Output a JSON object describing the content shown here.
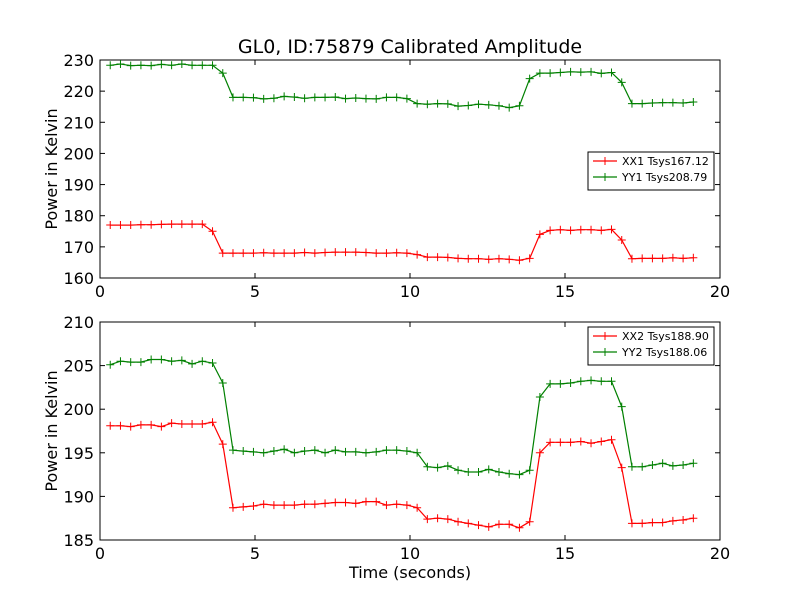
{
  "title": "GL0, ID:75879 Calibrated Amplitude",
  "chart_data": [
    {
      "type": "line",
      "title": "GL0, ID:75879 Calibrated Amplitude",
      "xlabel": "",
      "ylabel": "Power in Kelvin",
      "xlim": [
        0,
        20
      ],
      "ylim": [
        160,
        230
      ],
      "xticks": [
        0,
        5,
        10,
        15,
        20
      ],
      "yticks": [
        160,
        170,
        180,
        190,
        200,
        210,
        220,
        230
      ],
      "grid": false,
      "legend_position": "center-right",
      "x": [
        0.33,
        0.66,
        0.99,
        1.32,
        1.65,
        1.98,
        2.31,
        2.64,
        2.97,
        3.3,
        3.63,
        3.96,
        4.29,
        4.62,
        4.95,
        5.28,
        5.61,
        5.94,
        6.27,
        6.6,
        6.93,
        7.26,
        7.59,
        7.92,
        8.25,
        8.58,
        8.91,
        9.24,
        9.57,
        9.9,
        10.23,
        10.56,
        10.89,
        11.22,
        11.55,
        11.88,
        12.21,
        12.54,
        12.87,
        13.2,
        13.53,
        13.86,
        14.19,
        14.52,
        14.85,
        15.18,
        15.51,
        15.84,
        16.17,
        16.5,
        16.83,
        17.16,
        17.49,
        17.82,
        18.15,
        18.48,
        18.81,
        19.14
      ],
      "series": [
        {
          "name": "XX1 Tsys167.12",
          "color": "#ff0000",
          "values": [
            177.0,
            177.0,
            177.0,
            177.1,
            177.1,
            177.2,
            177.3,
            177.3,
            177.3,
            177.3,
            175.0,
            168.0,
            168.0,
            168.0,
            168.0,
            168.1,
            168.0,
            168.0,
            168.0,
            168.2,
            168.0,
            168.2,
            168.3,
            168.3,
            168.3,
            168.2,
            168.0,
            168.0,
            168.1,
            168.0,
            167.5,
            166.7,
            166.7,
            166.6,
            166.3,
            166.2,
            166.2,
            166.0,
            166.2,
            166.0,
            165.7,
            166.3,
            174.0,
            175.3,
            175.5,
            175.3,
            175.5,
            175.5,
            175.3,
            175.6,
            172.2,
            166.2,
            166.3,
            166.3,
            166.3,
            166.5,
            166.3,
            166.5
          ]
        },
        {
          "name": "YY1 Tsys208.79",
          "color": "#008000",
          "values": [
            228.3,
            228.7,
            228.2,
            228.3,
            228.2,
            228.6,
            228.3,
            228.7,
            228.3,
            228.3,
            228.3,
            225.8,
            218.0,
            218.0,
            217.9,
            217.5,
            217.7,
            218.3,
            218.1,
            217.7,
            218.0,
            218.0,
            218.1,
            217.6,
            217.8,
            217.6,
            217.5,
            218.0,
            218.0,
            217.6,
            216.0,
            215.8,
            216.0,
            215.9,
            215.2,
            215.4,
            215.8,
            215.6,
            215.3,
            214.7,
            215.3,
            224.0,
            225.8,
            225.8,
            226.0,
            226.2,
            226.1,
            226.2,
            225.7,
            226.0,
            222.8,
            216.0,
            216.0,
            216.2,
            216.3,
            216.3,
            216.2,
            216.5
          ]
        }
      ]
    },
    {
      "type": "line",
      "title": "",
      "xlabel": "Time (seconds)",
      "ylabel": "Power in Kelvin",
      "xlim": [
        0,
        20
      ],
      "ylim": [
        185,
        210
      ],
      "xticks": [
        0,
        5,
        10,
        15,
        20
      ],
      "yticks": [
        185,
        190,
        195,
        200,
        205,
        210
      ],
      "grid": false,
      "legend_position": "top-right",
      "x": [
        0.33,
        0.66,
        0.99,
        1.32,
        1.65,
        1.98,
        2.31,
        2.64,
        2.97,
        3.3,
        3.63,
        3.96,
        4.29,
        4.62,
        4.95,
        5.28,
        5.61,
        5.94,
        6.27,
        6.6,
        6.93,
        7.26,
        7.59,
        7.92,
        8.25,
        8.58,
        8.91,
        9.24,
        9.57,
        9.9,
        10.23,
        10.56,
        10.89,
        11.22,
        11.55,
        11.88,
        12.21,
        12.54,
        12.87,
        13.2,
        13.53,
        13.86,
        14.19,
        14.52,
        14.85,
        15.18,
        15.51,
        15.84,
        16.17,
        16.5,
        16.83,
        17.16,
        17.49,
        17.82,
        18.15,
        18.48,
        18.81,
        19.14
      ],
      "series": [
        {
          "name": "XX2 Tsys188.90",
          "color": "#ff0000",
          "values": [
            198.1,
            198.1,
            198.0,
            198.2,
            198.2,
            198.0,
            198.4,
            198.3,
            198.3,
            198.3,
            198.5,
            196.0,
            188.7,
            188.8,
            188.9,
            189.1,
            189.0,
            189.0,
            189.0,
            189.1,
            189.1,
            189.2,
            189.3,
            189.3,
            189.2,
            189.4,
            189.4,
            189.0,
            189.1,
            189.0,
            188.7,
            187.4,
            187.5,
            187.4,
            187.1,
            186.9,
            186.7,
            186.5,
            186.8,
            186.8,
            186.4,
            187.1,
            195.0,
            196.2,
            196.2,
            196.2,
            196.3,
            196.1,
            196.3,
            196.5,
            193.3,
            186.9,
            186.9,
            187.0,
            187.0,
            187.2,
            187.3,
            187.5
          ]
        },
        {
          "name": "YY2 Tsys188.06",
          "color": "#008000",
          "values": [
            205.1,
            205.5,
            205.4,
            205.4,
            205.7,
            205.7,
            205.5,
            205.6,
            205.2,
            205.5,
            205.3,
            203.0,
            195.3,
            195.2,
            195.1,
            195.0,
            195.2,
            195.4,
            195.0,
            195.2,
            195.3,
            195.0,
            195.3,
            195.1,
            195.1,
            195.0,
            195.1,
            195.3,
            195.3,
            195.2,
            195.0,
            193.4,
            193.3,
            193.5,
            193.0,
            192.8,
            192.8,
            193.1,
            192.8,
            192.6,
            192.5,
            193.0,
            201.4,
            202.9,
            202.9,
            203.0,
            203.2,
            203.3,
            203.2,
            203.2,
            200.3,
            193.4,
            193.4,
            193.6,
            193.8,
            193.5,
            193.6,
            193.8
          ]
        }
      ]
    }
  ]
}
